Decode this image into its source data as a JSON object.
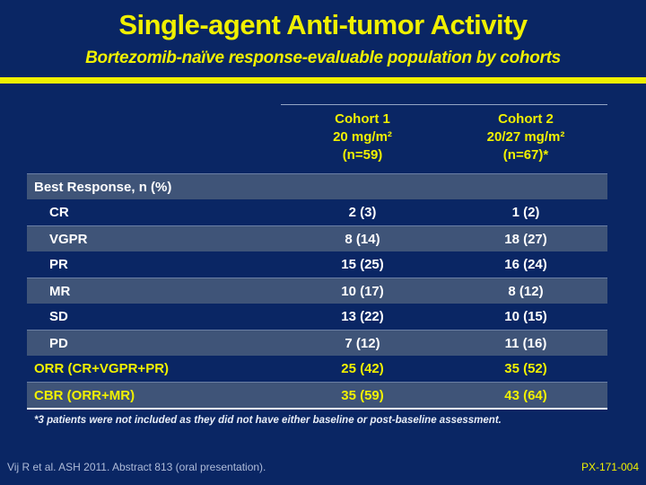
{
  "slide": {
    "title": "Single-agent Anti-tumor Activity",
    "subtitle": "Bortezomib-naïve response-evaluable population by cohorts",
    "footnote": "*3 patients were not included as they did not have either baseline or post-baseline assessment.",
    "citation": "Vij R et al. ASH 2011. Abstract 813 (oral presentation).",
    "slide_code": "PX-171-004"
  },
  "table": {
    "section_header": "Best Response, n (%)",
    "columns": [
      {
        "name": "Cohort 1",
        "dose": "20 mg/m²",
        "n": "(n=59)"
      },
      {
        "name": "Cohort 2",
        "dose": "20/27 mg/m²",
        "n": "(n=67)*"
      }
    ],
    "rows": [
      {
        "label": "CR",
        "cohort1": "2 (3)",
        "cohort2": "1 (2)"
      },
      {
        "label": "VGPR",
        "cohort1": "8 (14)",
        "cohort2": "18 (27)"
      },
      {
        "label": "PR",
        "cohort1": "15 (25)",
        "cohort2": "16 (24)"
      },
      {
        "label": "MR",
        "cohort1": "10 (17)",
        "cohort2": "8 (12)"
      },
      {
        "label": "SD",
        "cohort1": "13 (22)",
        "cohort2": "10 (15)"
      },
      {
        "label": "PD",
        "cohort1": "7 (12)",
        "cohort2": "11 (16)"
      },
      {
        "label": "ORR (CR+VGPR+PR)",
        "cohort1": "25 (42)",
        "cohort2": "35 (52)"
      },
      {
        "label": "CBR (ORR+MR)",
        "cohort1": "35 (59)",
        "cohort2": "43 (64)"
      }
    ]
  },
  "colors": {
    "background": "#0a2664",
    "band": "#3f5478",
    "accent_yellow": "#f0f000",
    "text_white": "#ffffff",
    "citation_text": "#aebbd8"
  }
}
